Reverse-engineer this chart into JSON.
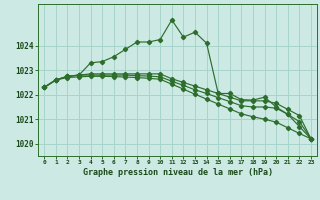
{
  "xlabel_label": "Graphe pression niveau de la mer (hPa)",
  "bg_color": "#cce9e4",
  "grid_color": "#a8d4cc",
  "line_color": "#2d6e2d",
  "marker_color": "#2d6e2d",
  "xlim": [
    -0.5,
    23.5
  ],
  "ylim": [
    1019.5,
    1025.7
  ],
  "yticks": [
    1020,
    1021,
    1022,
    1023,
    1024
  ],
  "xticks": [
    0,
    1,
    2,
    3,
    4,
    5,
    6,
    7,
    8,
    9,
    10,
    11,
    12,
    13,
    14,
    15,
    16,
    17,
    18,
    19,
    20,
    21,
    22,
    23
  ],
  "line1_x": [
    0,
    1,
    2,
    3,
    4,
    5,
    6,
    7,
    8,
    9,
    10,
    11,
    12,
    13,
    14,
    15,
    16,
    17,
    18,
    19,
    20,
    21,
    22,
    23
  ],
  "line1_y": [
    1022.3,
    1022.6,
    1022.75,
    1022.8,
    1023.3,
    1023.35,
    1023.55,
    1023.85,
    1024.15,
    1024.15,
    1024.25,
    1025.05,
    1024.35,
    1024.55,
    1024.1,
    1022.05,
    1022.05,
    1021.8,
    1021.78,
    1021.9,
    1021.5,
    1021.2,
    1020.7,
    1020.2
  ],
  "line2_x": [
    0,
    1,
    2,
    3,
    4,
    5,
    6,
    7,
    8,
    9,
    10,
    11,
    12,
    13,
    14,
    15,
    16,
    17,
    18,
    19,
    20,
    21,
    22,
    23
  ],
  "line2_y": [
    1022.3,
    1022.6,
    1022.75,
    1022.8,
    1022.85,
    1022.85,
    1022.85,
    1022.85,
    1022.85,
    1022.85,
    1022.85,
    1022.65,
    1022.5,
    1022.35,
    1022.2,
    1022.05,
    1021.9,
    1021.75,
    1021.75,
    1021.75,
    1021.65,
    1021.4,
    1021.15,
    1020.2
  ],
  "line3_x": [
    0,
    1,
    2,
    3,
    4,
    5,
    6,
    7,
    8,
    9,
    10,
    11,
    12,
    13,
    14,
    15,
    16,
    17,
    18,
    19,
    20,
    21,
    22,
    23
  ],
  "line3_y": [
    1022.3,
    1022.6,
    1022.75,
    1022.8,
    1022.8,
    1022.8,
    1022.8,
    1022.8,
    1022.78,
    1022.76,
    1022.73,
    1022.55,
    1022.38,
    1022.2,
    1022.05,
    1021.88,
    1021.72,
    1021.55,
    1021.5,
    1021.5,
    1021.45,
    1021.2,
    1020.9,
    1020.2
  ],
  "line4_x": [
    0,
    1,
    2,
    3,
    4,
    5,
    6,
    7,
    8,
    9,
    10,
    11,
    12,
    13,
    14,
    15,
    16,
    17,
    18,
    19,
    20,
    21,
    22,
    23
  ],
  "line4_y": [
    1022.3,
    1022.6,
    1022.7,
    1022.73,
    1022.75,
    1022.75,
    1022.74,
    1022.72,
    1022.7,
    1022.67,
    1022.63,
    1022.43,
    1022.23,
    1022.02,
    1021.82,
    1021.62,
    1021.42,
    1021.22,
    1021.1,
    1021.0,
    1020.88,
    1020.65,
    1020.42,
    1020.2
  ]
}
